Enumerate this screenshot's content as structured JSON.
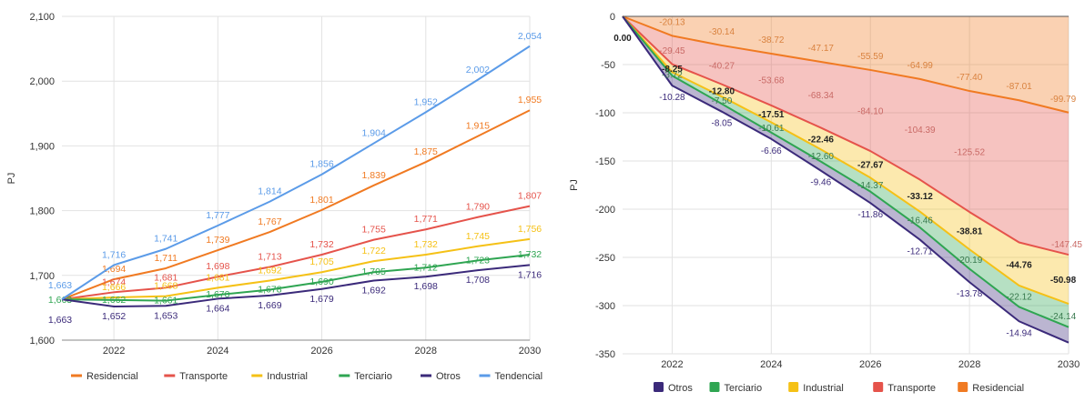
{
  "chart_data": [
    {
      "type": "line",
      "title": "",
      "xlabel": "",
      "ylabel": "PJ",
      "x": [
        2021,
        2022,
        2023,
        2024,
        2025,
        2026,
        2027,
        2028,
        2029,
        2030
      ],
      "xlim": [
        2021,
        2030
      ],
      "ylim": [
        1600,
        2100
      ],
      "yticks": [
        1600,
        1700,
        1800,
        1900,
        2000,
        2100
      ],
      "ytick_labels": [
        "1,600",
        "1,700",
        "1,800",
        "1,900",
        "2,000",
        "2,100"
      ],
      "xticks": [
        2022,
        2024,
        2026,
        2028,
        2030
      ],
      "grid": true,
      "legend_position": "bottom",
      "series": [
        {
          "name": "Residencial",
          "color": "#f07a22",
          "values": [
            1663,
            1694,
            1711,
            1739,
            1767,
            1801,
            1839,
            1875,
            1915,
            1955
          ],
          "labels": [
            "",
            "1,694",
            "1,711",
            "1,739",
            "1,767",
            "1,801",
            "1,839",
            "1,875",
            "1,915",
            "1,955"
          ]
        },
        {
          "name": "Transporte",
          "color": "#e5534b",
          "values": [
            1663,
            1674,
            1681,
            1698,
            1713,
            1732,
            1755,
            1771,
            1790,
            1807
          ],
          "labels": [
            "",
            "1,674",
            "1,681",
            "1,698",
            "1,713",
            "1,732",
            "1,755",
            "1,771",
            "1,790",
            "1,807"
          ]
        },
        {
          "name": "Industrial",
          "color": "#f5c116",
          "values": [
            1663,
            1666,
            1668,
            1681,
            1692,
            1705,
            1722,
            1732,
            1745,
            1756
          ],
          "labels": [
            "",
            "1,666",
            "1,668",
            "1,681",
            "1,692",
            "1,705",
            "1,722",
            "1,732",
            "1,745",
            "1,756"
          ]
        },
        {
          "name": "Terciario",
          "color": "#2fa552",
          "values": [
            1663,
            1662,
            1661,
            1670,
            1678,
            1690,
            1705,
            1712,
            1723,
            1732
          ],
          "labels": [
            "1,663",
            "1,662",
            "1,661",
            "1,670",
            "1,678",
            "1,690",
            "1,705",
            "1,712",
            "1,723",
            "1,732"
          ]
        },
        {
          "name": "Otros",
          "color": "#3b2a7a",
          "values": [
            1663,
            1652,
            1653,
            1664,
            1669,
            1679,
            1692,
            1698,
            1708,
            1716
          ],
          "labels": [
            "1,663",
            "1,652",
            "1,653",
            "1,664",
            "1,669",
            "1,679",
            "1,692",
            "1,698",
            "1,708",
            "1,716"
          ]
        },
        {
          "name": "Tendencial",
          "color": "#5b9be8",
          "values": [
            1663,
            1716,
            1741,
            1777,
            1814,
            1856,
            1904,
            1952,
            2002,
            2054
          ],
          "labels": [
            "1,663",
            "1,716",
            "1,741",
            "1,777",
            "1,814",
            "1,856",
            "1,904",
            "1,952",
            "2,002",
            "2,054"
          ]
        }
      ]
    },
    {
      "type": "area",
      "title": "",
      "xlabel": "",
      "ylabel": "PJ",
      "stacked": true,
      "x": [
        2021,
        2022,
        2023,
        2024,
        2025,
        2026,
        2027,
        2028,
        2029,
        2030
      ],
      "xlim": [
        2021,
        2030
      ],
      "ylim": [
        -350,
        0
      ],
      "yticks": [
        0,
        -50,
        -100,
        -150,
        -200,
        -250,
        -300,
        -350
      ],
      "xticks": [
        2022,
        2024,
        2026,
        2028,
        2030
      ],
      "grid": true,
      "legend_position": "bottom",
      "series": [
        {
          "name": "Otros",
          "color": "#3b2a7a",
          "values": [
            0,
            -10.28,
            -8.05,
            -6.66,
            -9.46,
            -11.86,
            -12.71,
            -13.78,
            -14.94,
            -16.06
          ],
          "labels": [
            "",
            "-10.28",
            "-8.05",
            "-6.66",
            "-9.46",
            "-11.86",
            "-12.71",
            "-13.78",
            "-14.94",
            ""
          ]
        },
        {
          "name": "Terciario",
          "color": "#2fa552",
          "values": [
            0,
            -3.72,
            -7.5,
            -10.61,
            -12.6,
            -14.37,
            -16.46,
            -20.19,
            -22.12,
            -24.14
          ],
          "labels": [
            "",
            "-3.72",
            "-7.50",
            "-10.61",
            "-12.60",
            "-14.37",
            "-16.46",
            "-20.19",
            "-22.12",
            "-24.14"
          ]
        },
        {
          "name": "Industrial",
          "color": "#f5c116",
          "values": [
            0,
            -8.25,
            -12.8,
            -17.51,
            -22.46,
            -27.67,
            -33.12,
            -38.81,
            -44.76,
            -50.98
          ],
          "labels": [
            "0.00",
            "-8.25",
            "-12.80",
            "-17.51",
            "-22.46",
            "-27.67",
            "-33.12",
            "-38.81",
            "-44.76",
            "-50.98"
          ]
        },
        {
          "name": "Transporte",
          "color": "#e5534b",
          "values": [
            0,
            -29.45,
            -40.27,
            -53.68,
            -68.34,
            -84.1,
            -104.39,
            -125.52,
            -147.45,
            -147.45
          ],
          "labels": [
            "",
            "-29.45",
            "-40.27",
            "-53.68",
            "-68.34",
            "-84.10",
            "-104.39",
            "-125.52",
            "-147.45",
            ""
          ]
        },
        {
          "name": "Residencial",
          "color": "#f07a22",
          "values": [
            0,
            -20.13,
            -30.14,
            -38.72,
            -47.17,
            -55.59,
            -64.99,
            -77.4,
            -87.01,
            -99.79
          ],
          "labels": [
            "",
            "-20.13",
            "-30.14",
            "-38.72",
            "-47.17",
            "-55.59",
            "-64.99",
            "-77.40",
            "-87.01",
            "-99.79"
          ]
        }
      ]
    }
  ]
}
